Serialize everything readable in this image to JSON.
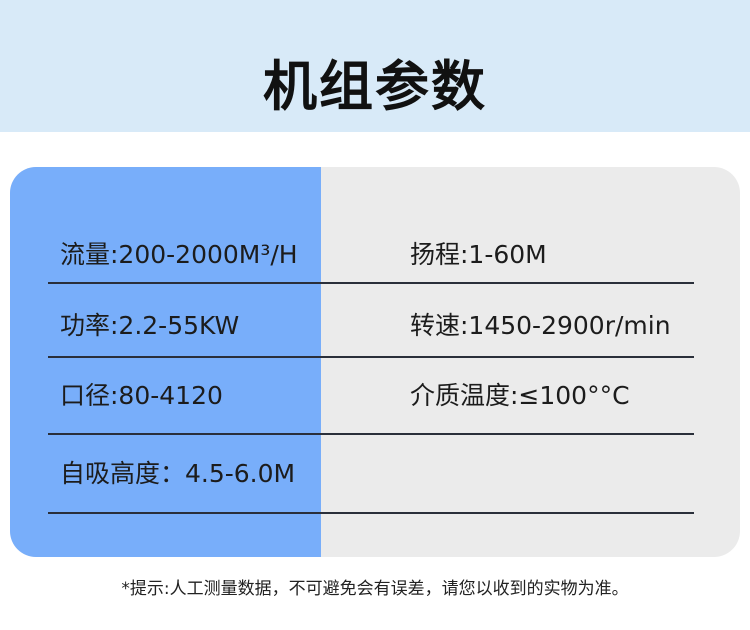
{
  "header": {
    "title": "机组参数"
  },
  "params": [
    {
      "left": "流量:200-2000M³/H",
      "right": "扬程:1-60M"
    },
    {
      "left": "功率:2.2-55KW",
      "right": "转速:1450-2900r/min"
    },
    {
      "left": "口径:80-4120",
      "right": "介质温度:≤100°°C"
    },
    {
      "left": "自吸高度：4.5-6.0M",
      "right": ""
    }
  ],
  "footnote": "*提示:人工测量数据，不可避免会有误差，请您以收到的实物为准。",
  "colors": {
    "header_bg": "#d8eaf8",
    "left_column": "#78aefa",
    "right_column": "#ebebeb"
  }
}
